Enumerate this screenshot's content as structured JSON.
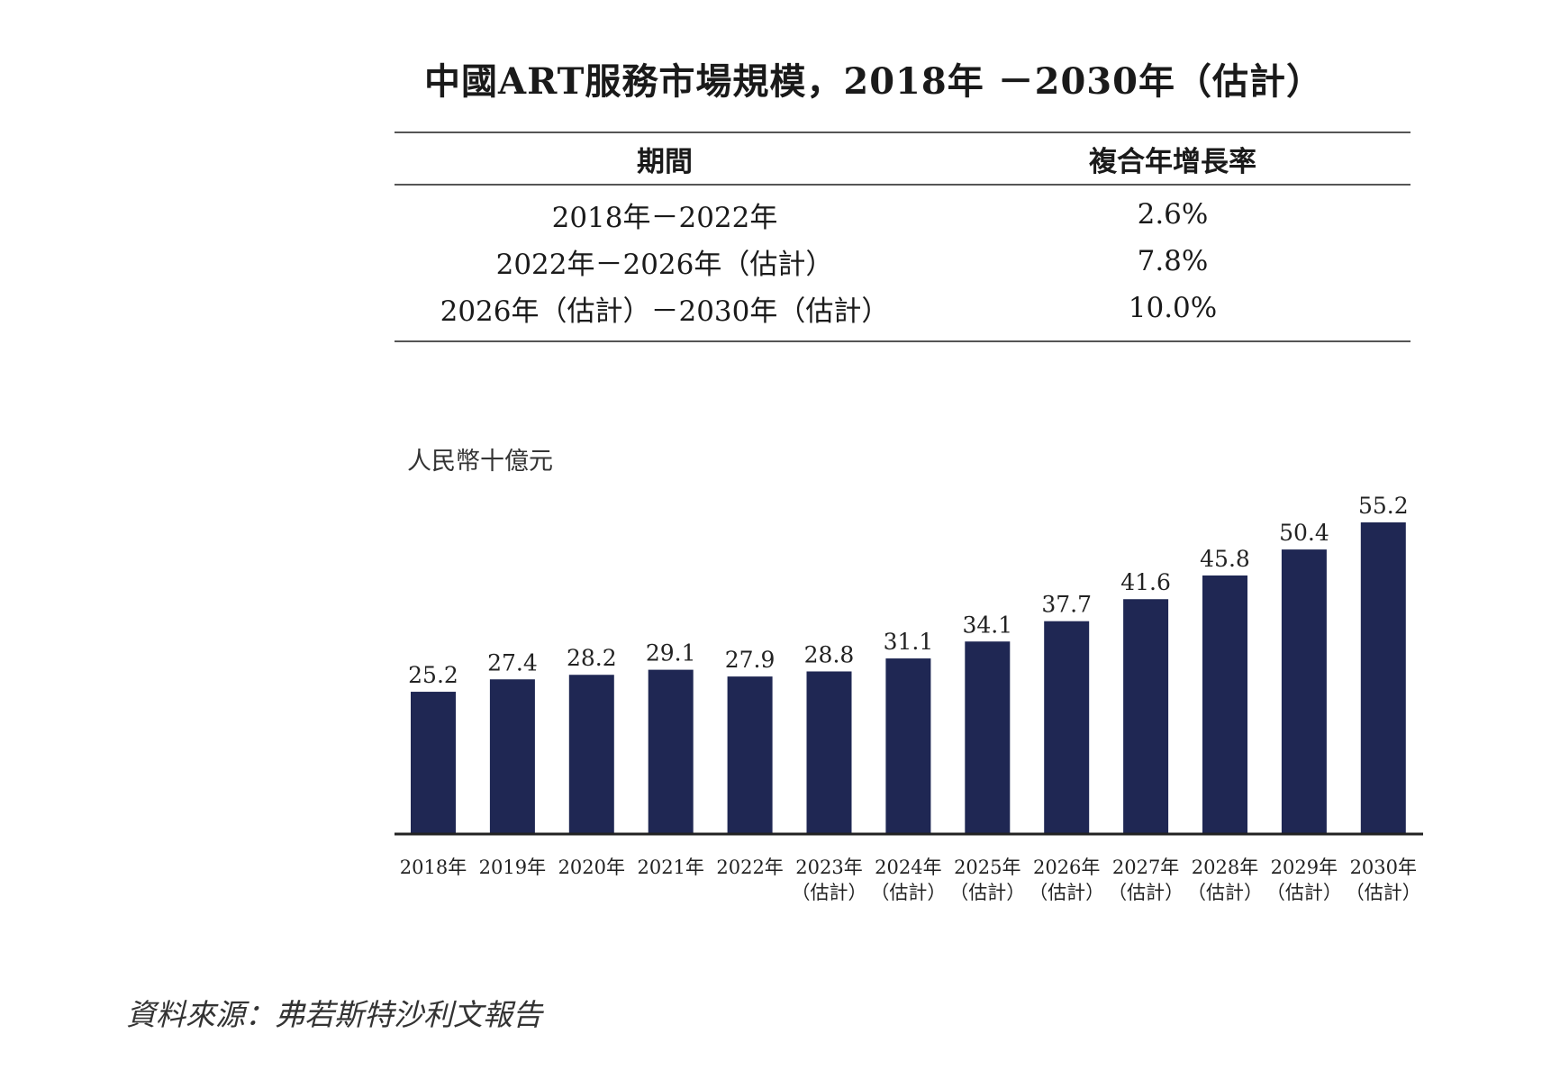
{
  "title": "中國ART服務市場規模，2018年 －2030年（估計）",
  "table": {
    "headers": [
      "期間",
      "複合年增長率"
    ],
    "rows": [
      {
        "period": "2018年－2022年",
        "cagr": "2.6%"
      },
      {
        "period": "2022年－2026年（估計）",
        "cagr": "7.8%"
      },
      {
        "period": "2026年（估計）－2030年（估計）",
        "cagr": "10.0%"
      }
    ]
  },
  "chart_data": {
    "type": "bar",
    "unit_label": "人民幣十億元",
    "categories": [
      "2018年",
      "2019年",
      "2020年",
      "2021年",
      "2022年",
      "2023年",
      "2024年",
      "2025年",
      "2026年",
      "2027年",
      "2028年",
      "2029年",
      "2030年"
    ],
    "estimate_note": [
      "",
      "",
      "",
      "",
      "",
      "（估計）",
      "（估計）",
      "（估計）",
      "（估計）",
      "（估計）",
      "（估計）",
      "（估計）",
      "（估計）"
    ],
    "values": [
      25.2,
      27.4,
      28.2,
      29.1,
      27.9,
      28.8,
      31.1,
      34.1,
      37.7,
      41.6,
      45.8,
      50.4,
      55.2
    ],
    "data_labels": [
      "25.2",
      "27.4",
      "28.2",
      "29.1",
      "27.9",
      "28.8",
      "31.1",
      "34.1",
      "37.7",
      "41.6",
      "45.8",
      "50.4",
      "55.2"
    ],
    "bar_color": "#1f2753",
    "axis_color": "#222222",
    "ylim": [
      0,
      55.2
    ],
    "grid": false
  },
  "source": "資料來源：弗若斯特沙利文報告"
}
